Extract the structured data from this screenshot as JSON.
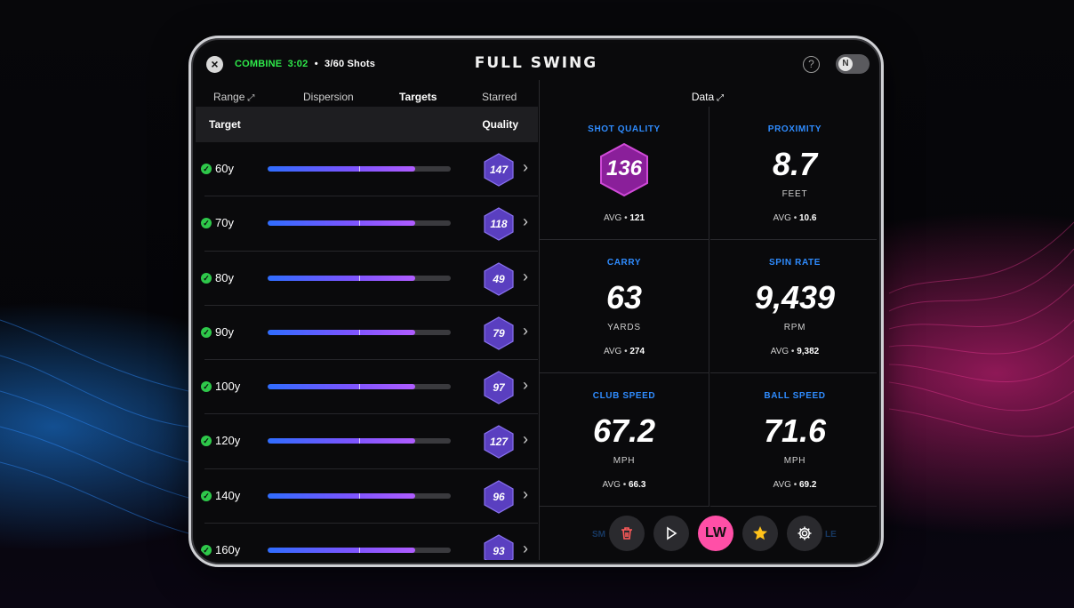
{
  "header": {
    "combine_label": "COMBINE",
    "combine_time": "3:02",
    "separator": "•",
    "shots": "3/60 Shots",
    "logo": "FULL SWING",
    "help": "?",
    "toggle_label": "N"
  },
  "tabs": [
    {
      "label": "Range"
    },
    {
      "label": "Dispersion"
    },
    {
      "label": "Targets"
    },
    {
      "label": "Starred"
    }
  ],
  "data_tab": {
    "label": "Data"
  },
  "table": {
    "col_target": "Target",
    "col_quality": "Quality",
    "rows": [
      {
        "target": "60y",
        "quality": "147",
        "progress": 0.805
      },
      {
        "target": "70y",
        "quality": "118",
        "progress": 0.805
      },
      {
        "target": "80y",
        "quality": "49",
        "progress": 0.805
      },
      {
        "target": "90y",
        "quality": "79",
        "progress": 0.805
      },
      {
        "target": "100y",
        "quality": "97",
        "progress": 0.805
      },
      {
        "target": "120y",
        "quality": "127",
        "progress": 0.805
      },
      {
        "target": "140y",
        "quality": "96",
        "progress": 0.805
      },
      {
        "target": "160y",
        "quality": "93",
        "progress": 0.805
      }
    ]
  },
  "metrics": [
    {
      "title": "SHOT QUALITY",
      "value": "136",
      "unit": "",
      "avg_label": "AVG •",
      "avg": "121"
    },
    {
      "title": "PROXIMITY",
      "value": "8.7",
      "unit": "FEET",
      "avg_label": "AVG •",
      "avg": "10.6"
    },
    {
      "title": "CARRY",
      "value": "63",
      "unit": "YARDS",
      "avg_label": "AVG •",
      "avg": "274"
    },
    {
      "title": "SPIN RATE",
      "value": "9,439",
      "unit": "RPM",
      "avg_label": "AVG •",
      "avg": "9,382"
    },
    {
      "title": "CLUB SPEED",
      "value": "67.2",
      "unit": "MPH",
      "avg_label": "AVG •",
      "avg": "66.3"
    },
    {
      "title": "BALL SPEED",
      "value": "71.6",
      "unit": "MPH",
      "avg_label": "AVG •",
      "avg": "69.2"
    }
  ],
  "ghost_labels": {
    "left": "SM",
    "right": "LE"
  },
  "toolbar": {
    "delete_icon": "trash-icon",
    "play_icon": "play-icon",
    "club": "LW",
    "star_icon": "star-icon",
    "settings_icon": "gear-icon"
  },
  "colors": {
    "accent_blue": "#2f8cff",
    "check_green": "#2ec84a",
    "combine_green": "#2ee84a",
    "club_pink": "#ff4fa7",
    "hex_purple": "#6a4bd8",
    "quality_magenta": "#b02fb8"
  }
}
